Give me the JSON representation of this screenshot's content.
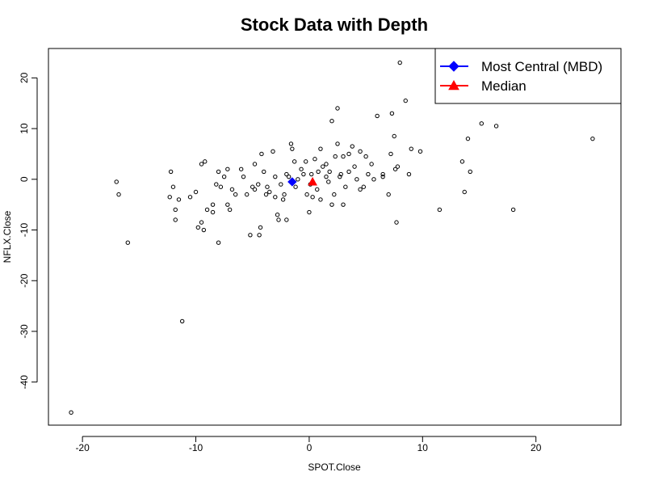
{
  "chart_data": {
    "type": "scatter",
    "title": "Stock Data with Depth",
    "xlabel": "SPOT.Close",
    "ylabel": "NFLX.Close",
    "xlim": [
      -23,
      27.5
    ],
    "ylim": [
      -48.5,
      25.8
    ],
    "xticks": [
      -20,
      -10,
      0,
      10,
      20
    ],
    "xtick_labels": [
      "-20",
      "-10",
      "0",
      "10",
      "20"
    ],
    "yticks": [
      -40,
      -30,
      -20,
      -10,
      0,
      10,
      20
    ],
    "ytick_labels": [
      "-40",
      "-30",
      "-20",
      "-10",
      "0",
      "10",
      "20"
    ],
    "grid": false,
    "legend_position": "top-right",
    "legend": [
      {
        "label": "Most Central (MBD)",
        "color": "#0000ff",
        "marker": "diamond"
      },
      {
        "label": "Median",
        "color": "#ff0000",
        "marker": "triangle"
      }
    ],
    "series": [
      {
        "name": "data",
        "marker": "open-circle",
        "color": "#000000",
        "points": [
          [
            -21,
            -46
          ],
          [
            -17,
            -0.5
          ],
          [
            -16.8,
            -3
          ],
          [
            -16,
            -12.5
          ],
          [
            -12.3,
            -3.5
          ],
          [
            -12.2,
            1.5
          ],
          [
            -12,
            -1.5
          ],
          [
            -11.8,
            -6
          ],
          [
            -11.8,
            -8
          ],
          [
            -11.5,
            -4
          ],
          [
            -11.2,
            -28
          ],
          [
            -10.5,
            -3.5
          ],
          [
            -10,
            -2.5
          ],
          [
            -9.8,
            -9.5
          ],
          [
            -9.5,
            3
          ],
          [
            -9.5,
            -8.5
          ],
          [
            -9.3,
            -10
          ],
          [
            -9.2,
            3.5
          ],
          [
            -9,
            -6
          ],
          [
            -8.5,
            -6.5
          ],
          [
            -8.5,
            -5
          ],
          [
            -8.2,
            -1
          ],
          [
            -8,
            -12.5
          ],
          [
            -8,
            1.5
          ],
          [
            -7.8,
            -1.5
          ],
          [
            -7.5,
            0.5
          ],
          [
            -7.2,
            2
          ],
          [
            -7.2,
            -5
          ],
          [
            -7,
            -6
          ],
          [
            -6.8,
            -2
          ],
          [
            -6.5,
            -3
          ],
          [
            -6,
            2
          ],
          [
            -5.8,
            0.5
          ],
          [
            -5.5,
            -3
          ],
          [
            -5.2,
            -11
          ],
          [
            -5,
            -1.5
          ],
          [
            -4.8,
            3
          ],
          [
            -4.8,
            -2
          ],
          [
            -4.5,
            -1
          ],
          [
            -4.4,
            -11
          ],
          [
            -4.3,
            -9.5
          ],
          [
            -4.2,
            5
          ],
          [
            -4,
            1.5
          ],
          [
            -3.8,
            -3
          ],
          [
            -3.7,
            -1.5
          ],
          [
            -3.5,
            -2.5
          ],
          [
            -3.2,
            5.5
          ],
          [
            -3,
            0.5
          ],
          [
            -3,
            -3.5
          ],
          [
            -2.8,
            -7
          ],
          [
            -2.7,
            -8
          ],
          [
            -2.5,
            -1
          ],
          [
            -2.3,
            -4
          ],
          [
            -2.2,
            -3
          ],
          [
            -2,
            1
          ],
          [
            -2,
            -8
          ],
          [
            -1.8,
            0.5
          ],
          [
            -1.6,
            7
          ],
          [
            -1.5,
            6
          ],
          [
            -1.3,
            3.5
          ],
          [
            -1.2,
            -1.5
          ],
          [
            -1,
            0
          ],
          [
            -0.7,
            2
          ],
          [
            -0.5,
            1
          ],
          [
            -0.3,
            3.5
          ],
          [
            -0.2,
            -3
          ],
          [
            0,
            -6.5
          ],
          [
            0.1,
            -1
          ],
          [
            0.2,
            1
          ],
          [
            0.3,
            -3.5
          ],
          [
            0.5,
            4
          ],
          [
            0.7,
            -2
          ],
          [
            0.8,
            1.5
          ],
          [
            1,
            6
          ],
          [
            1,
            -4
          ],
          [
            1.2,
            2.5
          ],
          [
            1.5,
            3
          ],
          [
            1.5,
            0.5
          ],
          [
            1.7,
            -0.5
          ],
          [
            1.8,
            1.5
          ],
          [
            2,
            11.5
          ],
          [
            2,
            -5
          ],
          [
            2.2,
            -3
          ],
          [
            2.3,
            4.5
          ],
          [
            2.5,
            14
          ],
          [
            2.5,
            7
          ],
          [
            2.7,
            0.5
          ],
          [
            2.8,
            1
          ],
          [
            3,
            4.5
          ],
          [
            3,
            -5
          ],
          [
            3.2,
            -1.5
          ],
          [
            3.5,
            5
          ],
          [
            3.5,
            1.5
          ],
          [
            3.8,
            6.5
          ],
          [
            4,
            2.5
          ],
          [
            4.2,
            0
          ],
          [
            4.5,
            5.5
          ],
          [
            4.5,
            -2
          ],
          [
            4.8,
            -1.5
          ],
          [
            5,
            4.5
          ],
          [
            5.2,
            1
          ],
          [
            5.5,
            3
          ],
          [
            5.7,
            0
          ],
          [
            6,
            12.5
          ],
          [
            6.5,
            1
          ],
          [
            6.5,
            0.5
          ],
          [
            7,
            -3
          ],
          [
            7.2,
            5
          ],
          [
            7.3,
            13
          ],
          [
            7.5,
            8.5
          ],
          [
            7.6,
            2
          ],
          [
            7.7,
            -8.5
          ],
          [
            7.8,
            2.5
          ],
          [
            8,
            23
          ],
          [
            8.5,
            15.5
          ],
          [
            8.8,
            1
          ],
          [
            9,
            6
          ],
          [
            9.8,
            5.5
          ],
          [
            11.5,
            -6
          ],
          [
            13.5,
            3.5
          ],
          [
            13.7,
            -2.5
          ],
          [
            14,
            8
          ],
          [
            14.2,
            1.5
          ],
          [
            15.2,
            11
          ],
          [
            16.5,
            10.5
          ],
          [
            18,
            -6
          ],
          [
            25,
            8
          ]
        ]
      },
      {
        "name": "Most Central (MBD)",
        "marker": "diamond",
        "color": "#0000ff",
        "points": [
          [
            -1.5,
            -0.5
          ]
        ]
      },
      {
        "name": "Median",
        "marker": "triangle",
        "color": "#ff0000",
        "points": [
          [
            0.3,
            -0.5
          ]
        ]
      }
    ]
  }
}
